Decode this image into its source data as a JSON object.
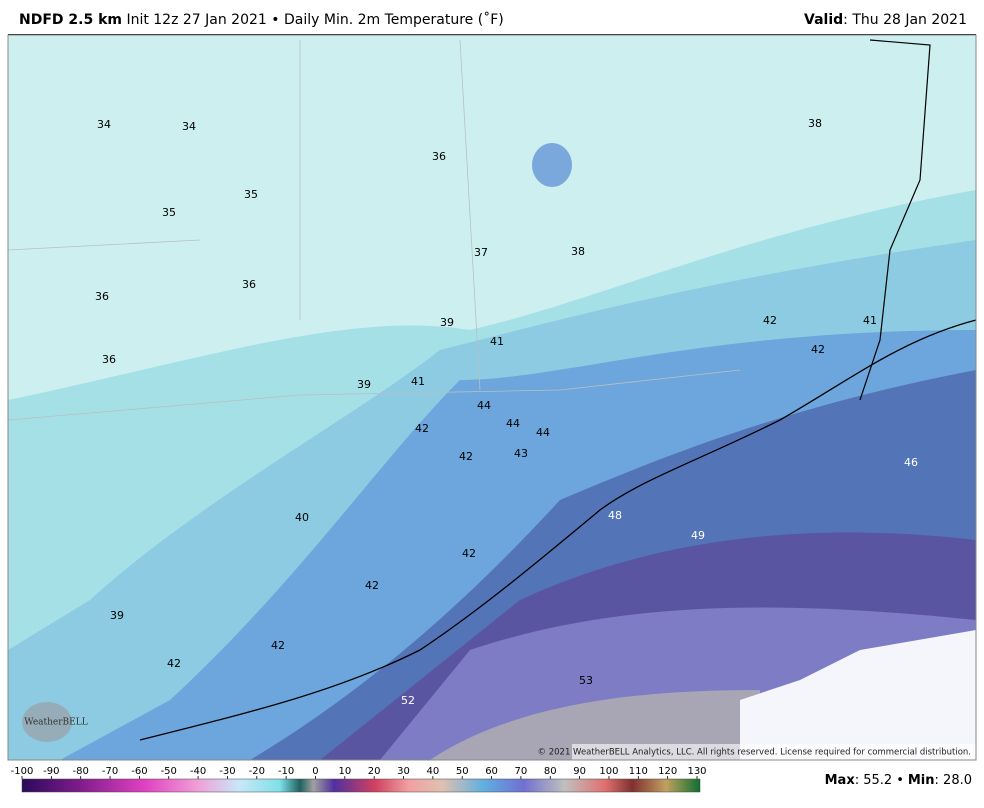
{
  "header": {
    "product": "NDFD 2.5 km",
    "init": "Init 12z 27 Jan 2021",
    "separator": "•",
    "field": "Daily Min. 2m Temperature (˚F)",
    "valid_label": "Valid",
    "valid": ": Thu 28 Jan 2021"
  },
  "map": {
    "labels": [
      "34",
      "34",
      "36",
      "38",
      "35",
      "35",
      "37",
      "38",
      "36",
      "36",
      "39",
      "41",
      "42",
      "41",
      "42",
      "36",
      "39",
      "41",
      "44",
      "44",
      "44",
      "42",
      "42",
      "43",
      "46",
      "48",
      "49",
      "40",
      "42",
      "42",
      "39",
      "42",
      "42",
      "52",
      "53"
    ],
    "logo": "WeatherBELL",
    "copyright": "© 2021 WeatherBELL Analytics, LLC. All rights reserved. License required for commercial distribution."
  },
  "colorbar": {
    "ticks": [
      -100,
      -90,
      -80,
      -70,
      -60,
      -50,
      -40,
      -30,
      -20,
      -10,
      0,
      10,
      20,
      30,
      40,
      50,
      60,
      70,
      80,
      90,
      100,
      110,
      120,
      130
    ]
  },
  "stats": {
    "max_label": "Max",
    "max": "55.2",
    "separator": "•",
    "min_label": "Min",
    "min": "28.0"
  }
}
